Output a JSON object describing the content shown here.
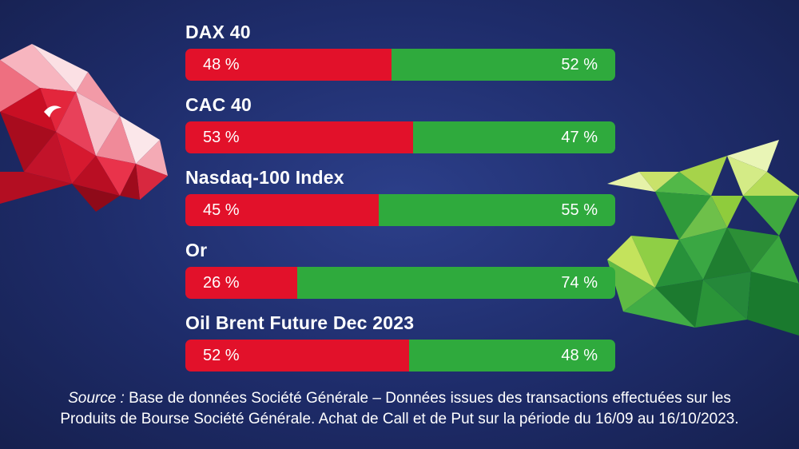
{
  "chart_data": {
    "type": "bar",
    "stacked": true,
    "orientation": "horizontal",
    "categories": [
      "DAX 40",
      "CAC 40",
      "Nasdaq-100 Index",
      "Or",
      "Oil Brent Future Dec 2023"
    ],
    "series": [
      {
        "values": [
          48,
          53,
          45,
          26,
          52
        ],
        "color": "#e2112a"
      },
      {
        "values": [
          52,
          47,
          55,
          74,
          48
        ],
        "color": "#2faa3d"
      }
    ],
    "value_suffix": " %"
  },
  "source": {
    "label": "Source :",
    "text": " Base de données Société Générale – Données issues des transactions effectuées sur les",
    "line2": "Produits de Bourse Société Générale. Achat de Call et de Put sur la période du 16/09 au 16/10/2023."
  },
  "illustrations": {
    "left": "bear-icon",
    "right": "bull-icon"
  }
}
